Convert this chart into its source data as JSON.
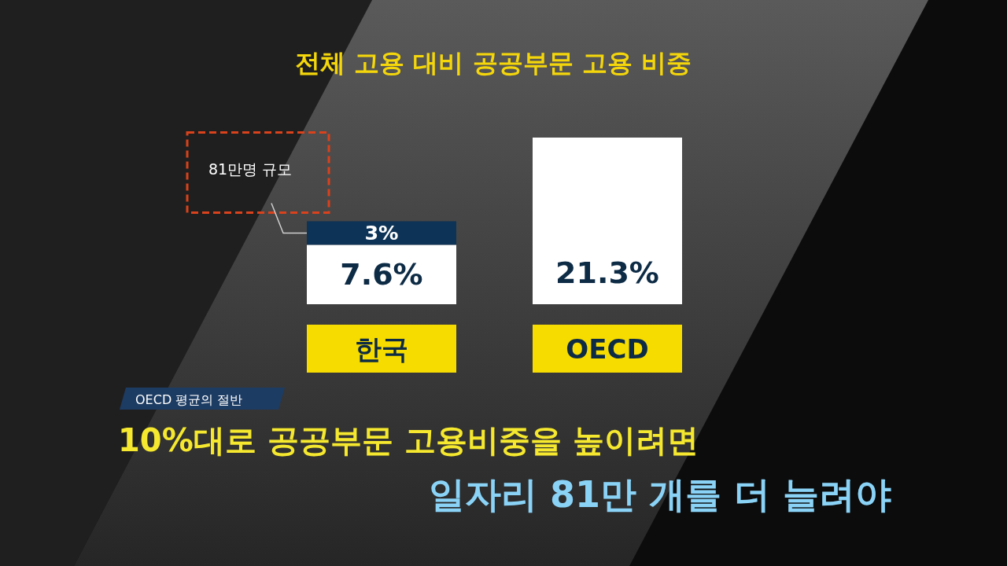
{
  "chart_data": {
    "type": "bar",
    "title": "전체 고용 대비 공공부문 고용 비중",
    "categories": [
      "한국",
      "OECD"
    ],
    "stacked": true,
    "series": [
      {
        "color": "#ffffff",
        "values": [
          7.6,
          21.3
        ],
        "value_labels": [
          "7.6%",
          "21.3%"
        ]
      },
      {
        "color": "#0d3356",
        "values": [
          3,
          null
        ],
        "value_labels": [
          "3%",
          null
        ]
      }
    ],
    "annotations": [
      "81만명 규모",
      "OECD 평균의 절반",
      "10%대로 공공부문 고용비중을 높이려면",
      "일자리 81만 개를 더 늘려야"
    ]
  }
}
